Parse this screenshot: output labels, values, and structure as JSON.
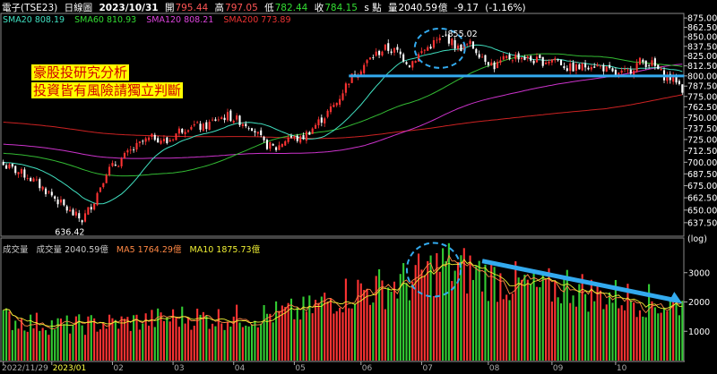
{
  "header": {
    "symbol": "電子(TSE23)",
    "period": "日線圖",
    "date": "2023/10/31",
    "open_label": "開",
    "open": "795.44",
    "high_label": "高",
    "high": "797.05",
    "low_label": "低",
    "low": "782.44",
    "close_label": "收",
    "close": "784.15",
    "unit_label": "s 點",
    "vol_label": "量",
    "volume": "2040.59",
    "vol_unit": "億",
    "change": "-9.17",
    "change_pct": "(-1.16%)"
  },
  "indicators": {
    "sma20": "SMA20 808.19",
    "sma60": "SMA60 810.93",
    "sma120": "SMA120 808.21",
    "sma200": "SMA200 773.89"
  },
  "volume_indicators": {
    "title": "成交量",
    "vol": "成交量 2040.59",
    "vol_unit": "億",
    "ma5": "MA5 1764.29",
    "ma5_unit": "億",
    "ma10": "MA10 1875.73",
    "ma10_unit": "億"
  },
  "annotations": {
    "line1": "豪股投研究分析",
    "line2": "投資皆有風險請獨立判斷",
    "peak_label": "855.02",
    "trough_label": "636.42",
    "log_label": "(log)"
  },
  "colors": {
    "up": "#ff3333",
    "down": "#33cc33",
    "sma20": "#40e0c0",
    "sma60": "#33bb33",
    "sma120": "#cc33cc",
    "sma200": "#cc2222",
    "annotation": "#33aaee"
  },
  "chart_data": [
    {
      "type": "candlestick",
      "title": "電子(TSE23) 日線圖",
      "ylabel": "(log)",
      "ylim": [
        626,
        880
      ],
      "y_ticks": [
        "875.00",
        "862.50",
        "850.00",
        "837.50",
        "825.00",
        "812.50",
        "800.00",
        "787.50",
        "775.00",
        "762.50",
        "750.00",
        "737.50",
        "725.00",
        "712.50",
        "700.00",
        "687.50",
        "675.00",
        "662.50",
        "650.00",
        "637.50"
      ],
      "x_labels": [
        "2022/11/29",
        "2023/01",
        "02",
        "03",
        "04",
        "05",
        "06",
        "07",
        "08",
        "09",
        "10"
      ],
      "close_anchors": [
        [
          0,
          697
        ],
        [
          8,
          685
        ],
        [
          16,
          665
        ],
        [
          22,
          648
        ],
        [
          26,
          640
        ],
        [
          30,
          660
        ],
        [
          34,
          690
        ],
        [
          38,
          700
        ],
        [
          42,
          712
        ],
        [
          46,
          722
        ],
        [
          50,
          728
        ],
        [
          54,
          722
        ],
        [
          58,
          735
        ],
        [
          62,
          742
        ],
        [
          66,
          738
        ],
        [
          70,
          748
        ],
        [
          74,
          752
        ],
        [
          78,
          746
        ],
        [
          82,
          740
        ],
        [
          86,
          720
        ],
        [
          90,
          715
        ],
        [
          94,
          728
        ],
        [
          98,
          725
        ],
        [
          102,
          738
        ],
        [
          106,
          752
        ],
        [
          110,
          768
        ],
        [
          114,
          795
        ],
        [
          118,
          810
        ],
        [
          122,
          825
        ],
        [
          126,
          835
        ],
        [
          130,
          830
        ],
        [
          134,
          815
        ],
        [
          138,
          830
        ],
        [
          142,
          842
        ],
        [
          146,
          850
        ],
        [
          150,
          835
        ],
        [
          154,
          840
        ],
        [
          158,
          825
        ],
        [
          162,
          812
        ],
        [
          166,
          822
        ],
        [
          170,
          825
        ],
        [
          174,
          820
        ],
        [
          178,
          818
        ],
        [
          182,
          822
        ],
        [
          186,
          810
        ],
        [
          190,
          810
        ],
        [
          194,
          815
        ],
        [
          198,
          810
        ],
        [
          202,
          800
        ],
        [
          206,
          805
        ],
        [
          210,
          818
        ],
        [
          214,
          815
        ],
        [
          218,
          800
        ],
        [
          222,
          795
        ],
        [
          224,
          784
        ]
      ],
      "series_last": {
        "SMA20": 808.19,
        "SMA60": 810.93,
        "SMA120": 808.21,
        "SMA200": 773.89
      },
      "annotations": [
        "855.02",
        "636.42"
      ]
    },
    {
      "type": "bar",
      "title": "成交量",
      "ylim": [
        0,
        4000
      ],
      "y_ticks": [
        "3000",
        "2000",
        "1000"
      ],
      "volume_anchors": [
        [
          0,
          1450
        ],
        [
          10,
          1300
        ],
        [
          20,
          1200
        ],
        [
          30,
          1250
        ],
        [
          40,
          1300
        ],
        [
          50,
          1400
        ],
        [
          60,
          1500
        ],
        [
          70,
          1450
        ],
        [
          80,
          1500
        ],
        [
          90,
          1600
        ],
        [
          100,
          1700
        ],
        [
          110,
          2200
        ],
        [
          118,
          2400
        ],
        [
          126,
          2500
        ],
        [
          134,
          2700
        ],
        [
          140,
          3000
        ],
        [
          146,
          3300
        ],
        [
          150,
          3100
        ],
        [
          156,
          3000
        ],
        [
          162,
          2800
        ],
        [
          170,
          2600
        ],
        [
          178,
          2400
        ],
        [
          186,
          2600
        ],
        [
          194,
          2300
        ],
        [
          202,
          2200
        ],
        [
          210,
          2100
        ],
        [
          218,
          1900
        ],
        [
          224,
          2040
        ]
      ]
    }
  ]
}
